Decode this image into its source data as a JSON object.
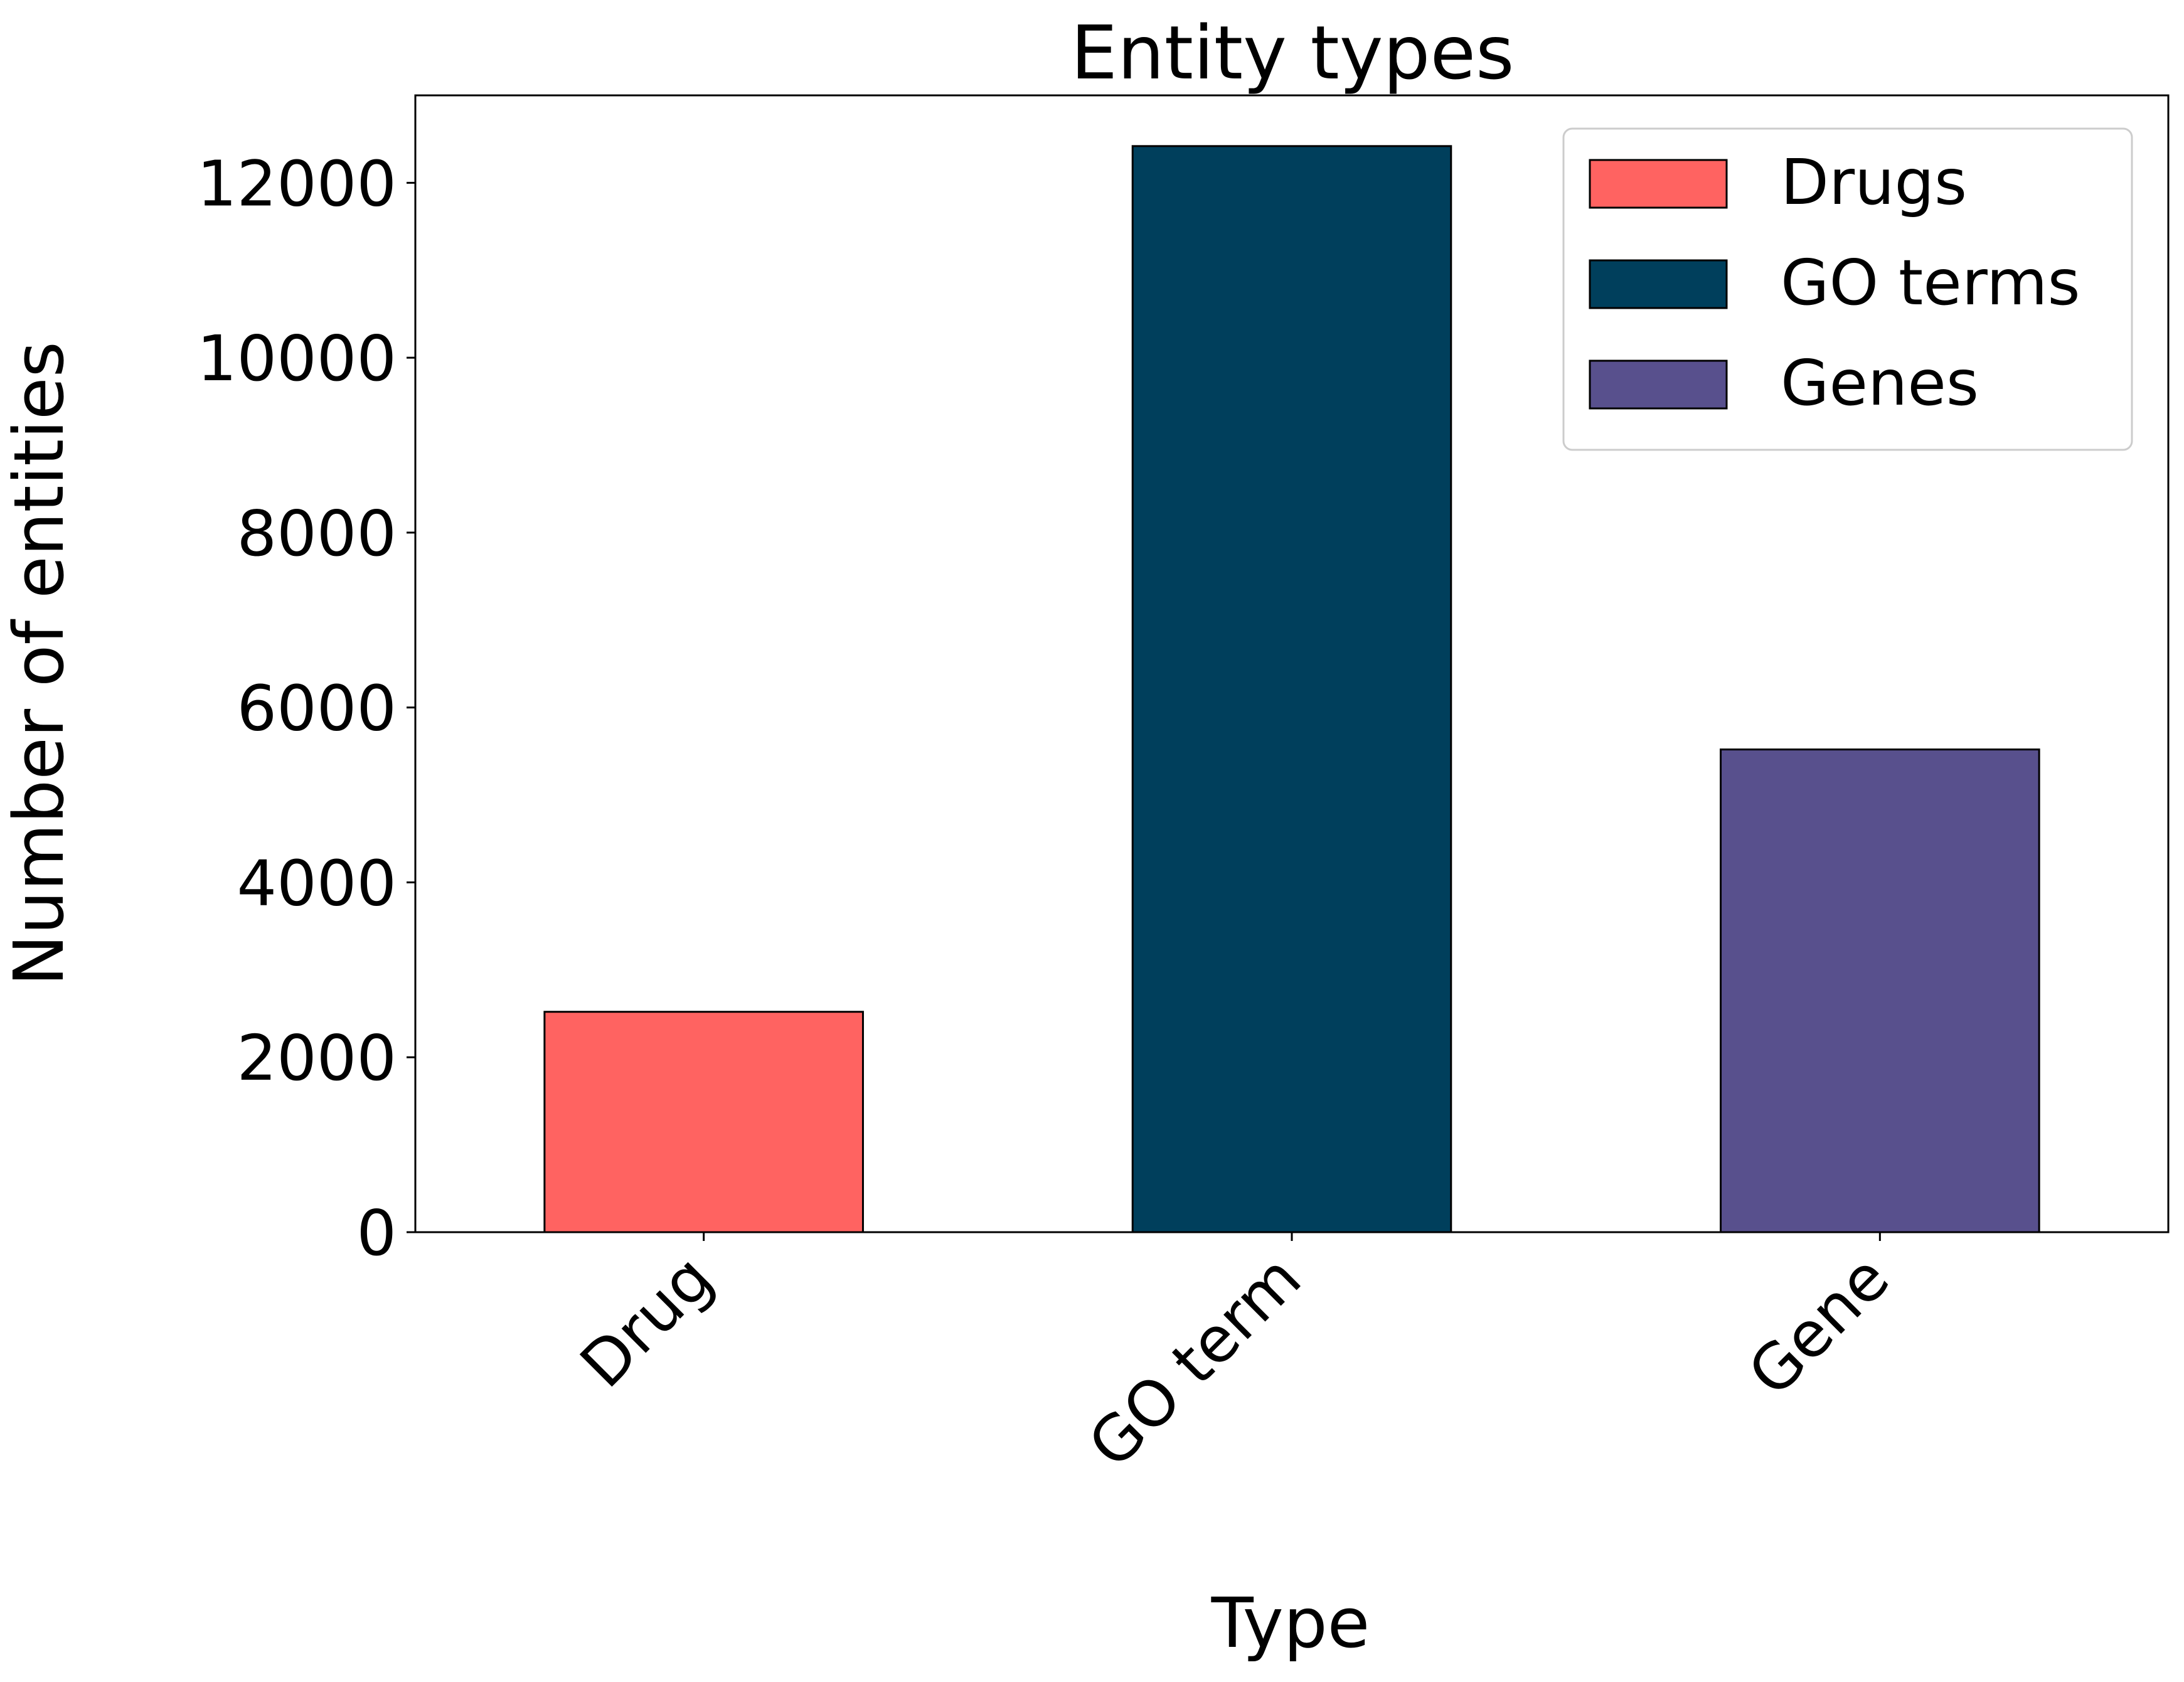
{
  "chart_data": {
    "type": "bar",
    "title": "Entity types",
    "xlabel": "Type",
    "ylabel": "Number of entities",
    "categories": [
      "Drug",
      "GO term",
      "Gene"
    ],
    "values": [
      2520,
      12420,
      5520
    ],
    "colors": [
      "#ff6361",
      "#003f5c",
      "#58508d"
    ],
    "ylim": [
      0,
      13000
    ],
    "yticks": [
      0,
      2000,
      4000,
      6000,
      8000,
      10000,
      12000
    ],
    "grid": false,
    "legend": {
      "placement": "top-right",
      "entries": [
        "Drugs",
        "GO terms",
        "Genes"
      ]
    }
  }
}
